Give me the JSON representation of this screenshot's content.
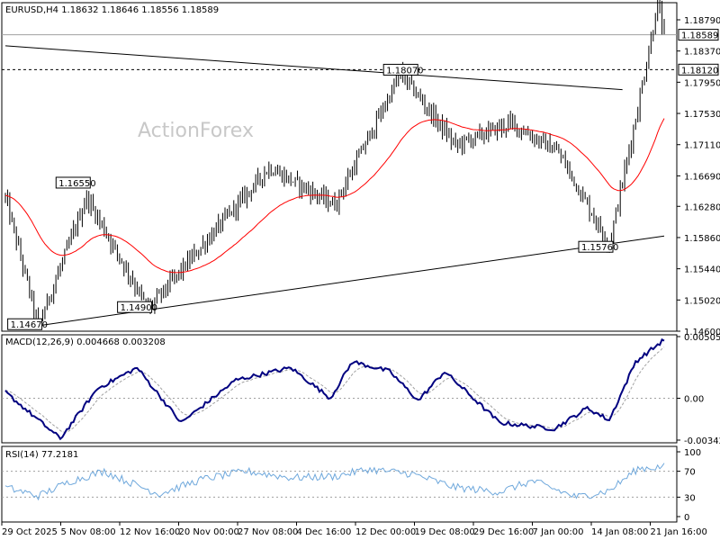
{
  "chart_data": [
    {
      "type": "candlestick",
      "panel": "price",
      "title": "EURUSD,H4  1.18632 1.18646 1.18556 1.18589",
      "watermark": "ActionForex",
      "ylim": [
        1.146,
        1.1902
      ],
      "y_ticks": [
        "1.18790",
        "1.18370",
        "1.17950",
        "1.17530",
        "1.17110",
        "1.16690",
        "1.16280",
        "1.15860",
        "1.15440",
        "1.15020",
        "1.14600"
      ],
      "current_price_label": "1.18589",
      "level_label": "1.18120",
      "annotations": [
        "1.14670",
        "1.14900",
        "1.16550",
        "1.18070",
        "1.15760"
      ],
      "key_points": [
        {
          "bar": 0,
          "value": 1.164
        },
        {
          "bar": 15,
          "value": 1.1467
        },
        {
          "bar": 37,
          "value": 1.164
        },
        {
          "bar": 65,
          "value": 1.149
        },
        {
          "bar": 120,
          "value": 1.168
        },
        {
          "bar": 150,
          "value": 1.163
        },
        {
          "bar": 180,
          "value": 1.1807
        },
        {
          "bar": 205,
          "value": 1.171
        },
        {
          "bar": 230,
          "value": 1.174
        },
        {
          "bar": 252,
          "value": 1.17
        },
        {
          "bar": 275,
          "value": 1.1576
        },
        {
          "bar": 288,
          "value": 1.176
        },
        {
          "bar": 297,
          "value": 1.19
        },
        {
          "bar": 300,
          "value": 1.1859
        }
      ],
      "trendlines": [
        {
          "from": {
            "bar": 0,
            "value": 1.1844
          },
          "to": {
            "bar": 281,
            "value": 1.1785
          }
        },
        {
          "from": {
            "bar": 14,
            "value": 1.1467
          },
          "to": {
            "bar": 300,
            "value": 1.1588
          }
        }
      ],
      "moving_average": {
        "color": "#ff0000"
      }
    },
    {
      "type": "line",
      "panel": "macd",
      "title": "MACD(12,26,9) 0.004668 0.003208",
      "ylim": [
        -0.00365,
        0.0052
      ],
      "y_ticks": [
        "0.005053",
        "0.00",
        "-0.003429"
      ],
      "series": [
        {
          "color": "#000080",
          "key_points": [
            {
              "bar": 0,
              "value": 0.0005
            },
            {
              "bar": 25,
              "value": -0.0033
            },
            {
              "bar": 42,
              "value": 0.0008
            },
            {
              "bar": 60,
              "value": 0.0025
            },
            {
              "bar": 80,
              "value": -0.002
            },
            {
              "bar": 105,
              "value": 0.0015
            },
            {
              "bar": 130,
              "value": 0.0025
            },
            {
              "bar": 148,
              "value": 0.0
            },
            {
              "bar": 158,
              "value": 0.003
            },
            {
              "bar": 175,
              "value": 0.0022
            },
            {
              "bar": 188,
              "value": -0.0002
            },
            {
              "bar": 200,
              "value": 0.0022
            },
            {
              "bar": 225,
              "value": -0.002
            },
            {
              "bar": 250,
              "value": -0.0025
            },
            {
              "bar": 265,
              "value": -0.0008
            },
            {
              "bar": 275,
              "value": -0.0018
            },
            {
              "bar": 287,
              "value": 0.003
            },
            {
              "bar": 300,
              "value": 0.0048
            }
          ]
        },
        {
          "color": "#a0a0a0",
          "dashed": true
        }
      ]
    },
    {
      "type": "line",
      "panel": "rsi",
      "title": "RSI(14) 77.2181",
      "ylim": [
        0,
        100
      ],
      "y_ticks": [
        "100",
        "70",
        "30",
        "0"
      ],
      "levels": [
        70,
        30
      ],
      "series": [
        {
          "color": "#6fa8dc",
          "key_points": [
            {
              "bar": 0,
              "value": 45
            },
            {
              "bar": 15,
              "value": 32
            },
            {
              "bar": 30,
              "value": 55
            },
            {
              "bar": 45,
              "value": 70
            },
            {
              "bar": 55,
              "value": 55
            },
            {
              "bar": 70,
              "value": 35
            },
            {
              "bar": 90,
              "value": 58
            },
            {
              "bar": 110,
              "value": 70
            },
            {
              "bar": 130,
              "value": 60
            },
            {
              "bar": 150,
              "value": 62
            },
            {
              "bar": 165,
              "value": 73
            },
            {
              "bar": 185,
              "value": 66
            },
            {
              "bar": 205,
              "value": 45
            },
            {
              "bar": 225,
              "value": 38
            },
            {
              "bar": 240,
              "value": 55
            },
            {
              "bar": 260,
              "value": 30
            },
            {
              "bar": 275,
              "value": 40
            },
            {
              "bar": 288,
              "value": 74
            },
            {
              "bar": 300,
              "value": 77
            }
          ]
        }
      ]
    }
  ],
  "x_tick_labels": [
    "29 Oct 2025",
    "5 Nov 08:00",
    "12 Nov 16:00",
    "20 Nov 00:00",
    "27 Nov 08:00",
    "4 Dec 16:00",
    "12 Dec 00:00",
    "19 Dec 08:00",
    "29 Dec 16:00",
    "7 Jan 00:00",
    "14 Jan 08:00",
    "21 Jan 16:00"
  ]
}
